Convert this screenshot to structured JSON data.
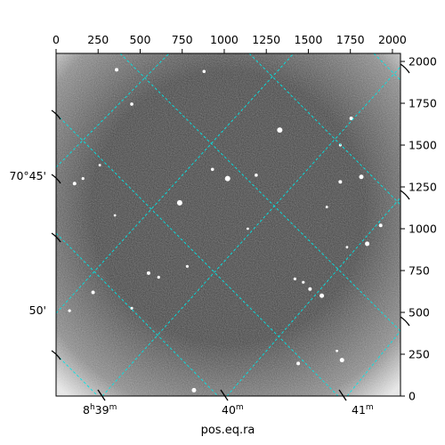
{
  "chart_data": {
    "type": "image",
    "colormap": "gray",
    "x_pixel": {
      "range": [
        0,
        2048
      ],
      "ticks": [
        0,
        250,
        500,
        750,
        1000,
        1250,
        1500,
        1750,
        2000
      ],
      "tick_labels": [
        "0",
        "250",
        "500",
        "750",
        "1000",
        "1250",
        "1500",
        "1750",
        "2000"
      ]
    },
    "y_pixel": {
      "range": [
        0,
        2048
      ],
      "ticks": [
        0,
        250,
        500,
        750,
        1000,
        1250,
        1500,
        1750,
        2000
      ],
      "tick_labels": [
        "0",
        "250",
        "500",
        "750",
        "1000",
        "1250",
        "1500",
        "1750",
        "2000"
      ]
    },
    "ra": {
      "xlabel": "pos.eq.ra",
      "tick_labels": [
        {
          "h": "8",
          "m": "39",
          "text": "8h39m"
        },
        {
          "h": "",
          "m": "40",
          "text": "40m"
        },
        {
          "h": "",
          "m": "41",
          "text": "41m"
        }
      ]
    },
    "dec": {
      "tick_labels": [
        "70°45'",
        "50'"
      ]
    },
    "grid": true,
    "grid_color": "#00e5e5",
    "background_color": "#3e3e3e",
    "stars": [
      {
        "x": 1330,
        "y": 1590,
        "s": 3
      },
      {
        "x": 1020,
        "y": 1300,
        "s": 3
      },
      {
        "x": 735,
        "y": 1155,
        "s": 3
      },
      {
        "x": 1815,
        "y": 1310,
        "s": 2.5
      },
      {
        "x": 930,
        "y": 1355,
        "s": 1.8
      },
      {
        "x": 1190,
        "y": 1320,
        "s": 1.8
      },
      {
        "x": 1690,
        "y": 1280,
        "s": 2
      },
      {
        "x": 1755,
        "y": 1660,
        "s": 2
      },
      {
        "x": 1690,
        "y": 1500,
        "s": 1.6
      },
      {
        "x": 1850,
        "y": 910,
        "s": 2.5
      },
      {
        "x": 1930,
        "y": 1020,
        "s": 2
      },
      {
        "x": 1580,
        "y": 600,
        "s": 2.5
      },
      {
        "x": 1510,
        "y": 640,
        "s": 2
      },
      {
        "x": 1420,
        "y": 700,
        "s": 1.6
      },
      {
        "x": 1470,
        "y": 680,
        "s": 1.6
      },
      {
        "x": 550,
        "y": 735,
        "s": 2
      },
      {
        "x": 610,
        "y": 710,
        "s": 1.6
      },
      {
        "x": 780,
        "y": 775,
        "s": 1.6
      },
      {
        "x": 450,
        "y": 525,
        "s": 1.6
      },
      {
        "x": 220,
        "y": 620,
        "s": 2
      },
      {
        "x": 80,
        "y": 510,
        "s": 1.6
      },
      {
        "x": 110,
        "y": 1270,
        "s": 2
      },
      {
        "x": 160,
        "y": 1300,
        "s": 1.6
      },
      {
        "x": 360,
        "y": 1950,
        "s": 2
      },
      {
        "x": 450,
        "y": 1745,
        "s": 1.8
      },
      {
        "x": 880,
        "y": 1940,
        "s": 1.8
      },
      {
        "x": 1700,
        "y": 215,
        "s": 2.5
      },
      {
        "x": 1440,
        "y": 195,
        "s": 2
      },
      {
        "x": 820,
        "y": 35,
        "s": 2.5
      },
      {
        "x": 1140,
        "y": 1000,
        "s": 1.4
      },
      {
        "x": 1610,
        "y": 1130,
        "s": 1.4
      },
      {
        "x": 1730,
        "y": 890,
        "s": 1.4
      },
      {
        "x": 350,
        "y": 1080,
        "s": 1.4
      },
      {
        "x": 1670,
        "y": 270,
        "s": 1.4
      },
      {
        "x": 260,
        "y": 1380,
        "s": 1.4
      }
    ]
  }
}
